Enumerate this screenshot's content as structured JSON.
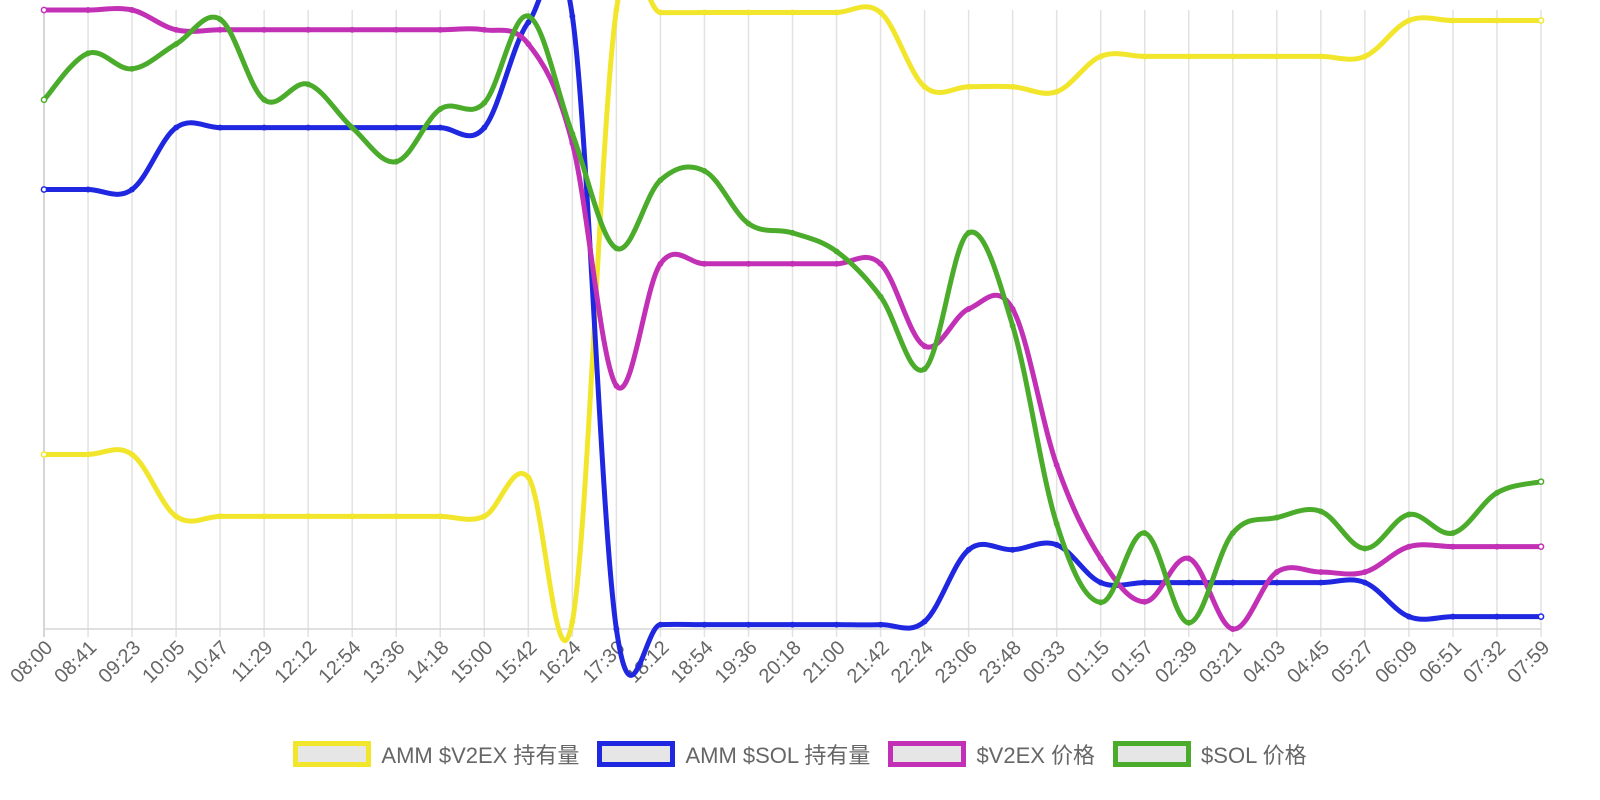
{
  "chart_data": {
    "type": "line",
    "title": "",
    "xlabel": "",
    "ylabel": "",
    "ylim": [
      0,
      100
    ],
    "grid": true,
    "legend_position": "bottom",
    "categories": [
      "08:00",
      "08:41",
      "09:23",
      "10:05",
      "10:47",
      "11:29",
      "12:12",
      "12:54",
      "13:36",
      "14:18",
      "15:00",
      "15:42",
      "16:24",
      "17:30",
      "18:12",
      "18:54",
      "19:36",
      "20:18",
      "21:00",
      "21:42",
      "22:24",
      "23:06",
      "23:48",
      "00:33",
      "01:15",
      "01:57",
      "02:39",
      "03:21",
      "04:03",
      "04:45",
      "05:27",
      "06:09",
      "06:51",
      "07:32",
      "07:59"
    ],
    "series": [
      {
        "name": "AMM $V2EX 持有量",
        "color": "#f2e62d",
        "values": [
          28.2,
          28.2,
          28.2,
          18.2,
          18.2,
          18.2,
          18.2,
          18.2,
          18.2,
          18.2,
          18.2,
          24.5,
          1.2,
          100,
          99.6,
          99.6,
          99.6,
          99.6,
          99.6,
          99.6,
          87.6,
          87.6,
          87.6,
          86.8,
          92.5,
          92.5,
          92.5,
          92.5,
          92.5,
          92.5,
          92.5,
          98.3,
          98.3,
          98.3,
          98.3
        ]
      },
      {
        "name": "AMM $SOL 持有量",
        "color": "#1f27e0",
        "values": [
          71.0,
          71.0,
          71.0,
          81.0,
          81.0,
          81.0,
          81.0,
          81.0,
          81.0,
          81.0,
          81.0,
          98.0,
          99.0,
          0,
          0.7,
          0.7,
          0.7,
          0.7,
          0.7,
          0.7,
          1.2,
          12.8,
          12.8,
          13.6,
          7.5,
          7.5,
          7.5,
          7.5,
          7.5,
          7.5,
          7.5,
          2.0,
          2.0,
          2.0,
          2.0
        ]
      },
      {
        "name": "$V2EX 价格",
        "color": "#c130b5",
        "values": [
          100,
          100,
          100,
          96.8,
          96.8,
          96.8,
          96.8,
          96.8,
          96.8,
          96.8,
          96.8,
          94.5,
          78.5,
          39.3,
          59.0,
          59.0,
          59.0,
          59.0,
          59.0,
          59.0,
          45.7,
          51.7,
          51.7,
          26.5,
          11.4,
          4.4,
          11.4,
          0,
          9.2,
          9.2,
          9.2,
          13.3,
          13.3,
          13.3,
          13.3
        ]
      },
      {
        "name": "$SOL 价格",
        "color": "#4aac2a",
        "values": [
          85.5,
          93.0,
          90.5,
          94.5,
          98.5,
          85.5,
          88.0,
          81.0,
          75.5,
          84.0,
          85.0,
          99.0,
          80.0,
          61.5,
          72.5,
          74.0,
          65.5,
          64.0,
          61.0,
          53.7,
          42.0,
          64.0,
          49.0,
          17.0,
          4.3,
          15.5,
          1.0,
          15.5,
          18.0,
          19.0,
          13.0,
          18.5,
          15.5,
          22.0,
          23.8
        ]
      }
    ]
  }
}
